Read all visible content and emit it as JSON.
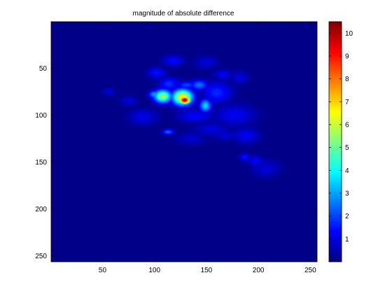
{
  "chart_data": {
    "type": "heatmap",
    "title": "magnitude of absolute difference",
    "xlabel": "",
    "ylabel": "",
    "x_range": [
      0.5,
      256.5
    ],
    "y_range": [
      0.5,
      256.5
    ],
    "y_reversed": true,
    "x_ticks": [
      50,
      100,
      150,
      200,
      250
    ],
    "y_ticks": [
      50,
      100,
      150,
      200,
      250
    ],
    "colorbar": {
      "colormap": "jet",
      "range": [
        0,
        10.5
      ],
      "ticks": [
        1,
        2,
        3,
        4,
        5,
        6,
        7,
        8,
        9,
        10
      ]
    },
    "background_value": 0.1,
    "blobs": [
      {
        "x": 129,
        "y": 84,
        "sx": 4,
        "sy": 3,
        "value": 10.3
      },
      {
        "x": 127,
        "y": 81,
        "sx": 7,
        "sy": 6,
        "value": 6.8
      },
      {
        "x": 108,
        "y": 80,
        "sx": 6,
        "sy": 5,
        "value": 5.6
      },
      {
        "x": 100,
        "y": 78,
        "sx": 4,
        "sy": 3,
        "value": 3.0
      },
      {
        "x": 149,
        "y": 90,
        "sx": 4,
        "sy": 5,
        "value": 3.6
      },
      {
        "x": 143,
        "y": 68,
        "sx": 6,
        "sy": 4,
        "value": 2.5
      },
      {
        "x": 131,
        "y": 68,
        "sx": 7,
        "sy": 3,
        "value": 2.0
      },
      {
        "x": 102,
        "y": 55,
        "sx": 6,
        "sy": 4,
        "value": 1.5
      },
      {
        "x": 118,
        "y": 42,
        "sx": 7,
        "sy": 4,
        "value": 1.4
      },
      {
        "x": 114,
        "y": 67,
        "sx": 7,
        "sy": 5,
        "value": 1.8
      },
      {
        "x": 160,
        "y": 76,
        "sx": 10,
        "sy": 8,
        "value": 1.7
      },
      {
        "x": 113,
        "y": 118,
        "sx": 4,
        "sy": 2,
        "value": 2.4
      },
      {
        "x": 89,
        "y": 102,
        "sx": 10,
        "sy": 6,
        "value": 1.1
      },
      {
        "x": 139,
        "y": 101,
        "sx": 12,
        "sy": 5,
        "value": 1.3
      },
      {
        "x": 155,
        "y": 115,
        "sx": 12,
        "sy": 5,
        "value": 1.0
      },
      {
        "x": 177,
        "y": 100,
        "sx": 14,
        "sy": 8,
        "value": 1.2
      },
      {
        "x": 188,
        "y": 122,
        "sx": 9,
        "sy": 6,
        "value": 1.2
      },
      {
        "x": 187,
        "y": 145,
        "sx": 4,
        "sy": 3,
        "value": 1.5
      },
      {
        "x": 197,
        "y": 149,
        "sx": 5,
        "sy": 4,
        "value": 1.3
      },
      {
        "x": 207,
        "y": 157,
        "sx": 10,
        "sy": 7,
        "value": 0.9
      },
      {
        "x": 182,
        "y": 60,
        "sx": 6,
        "sy": 5,
        "value": 1.0
      },
      {
        "x": 166,
        "y": 57,
        "sx": 6,
        "sy": 4,
        "value": 1.2
      },
      {
        "x": 150,
        "y": 44,
        "sx": 8,
        "sy": 5,
        "value": 0.9
      },
      {
        "x": 56,
        "y": 75,
        "sx": 4,
        "sy": 3,
        "value": 1.0
      },
      {
        "x": 75,
        "y": 85,
        "sx": 6,
        "sy": 4,
        "value": 0.9
      },
      {
        "x": 135,
        "y": 125,
        "sx": 10,
        "sy": 5,
        "value": 0.8
      },
      {
        "x": 168,
        "y": 122,
        "sx": 8,
        "sy": 4,
        "value": 0.9
      }
    ]
  }
}
